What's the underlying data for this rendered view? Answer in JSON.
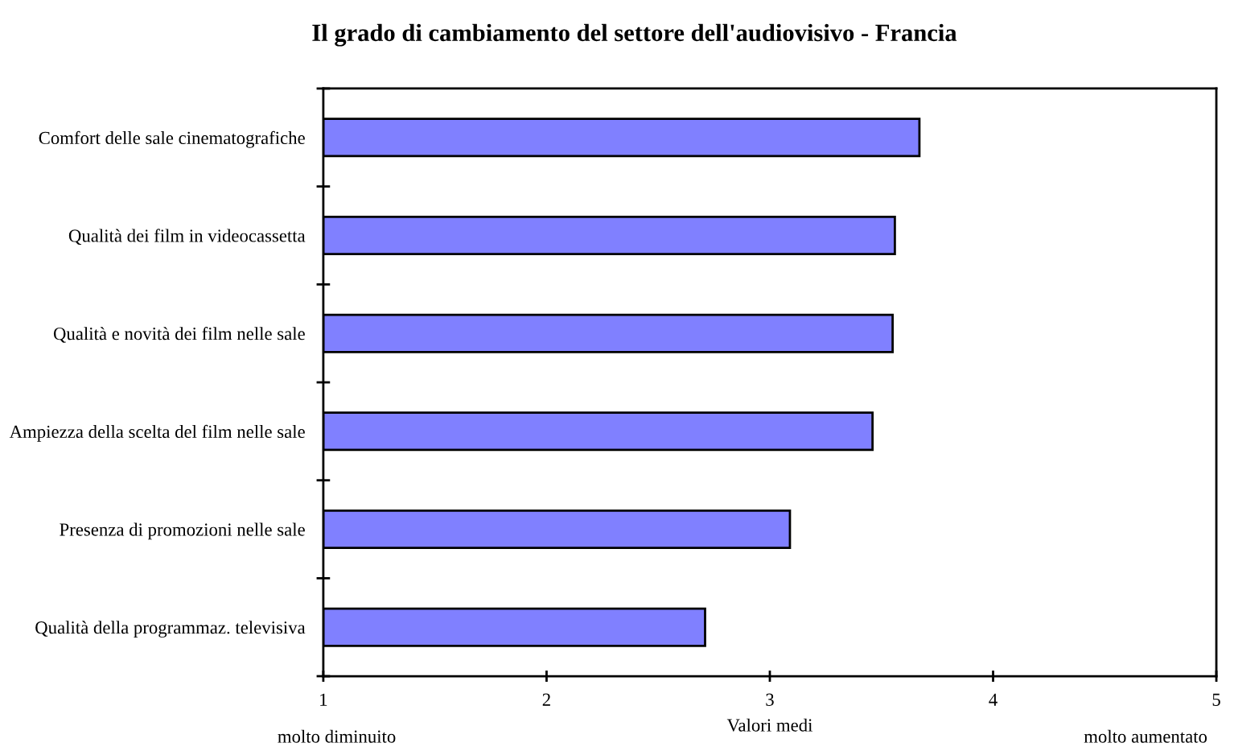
{
  "chart_data": {
    "type": "bar",
    "orientation": "horizontal",
    "title": "Il grado di cambiamento del settore dell'audiovisivo - Francia",
    "xlabel": "Valori medi",
    "categories": [
      "Comfort delle sale cinematografiche",
      "Qualità dei film in videocassetta",
      "Qualità e novità dei film nelle sale",
      "Ampiezza della scelta del film nelle sale",
      "Presenza di promozioni nelle sale",
      "Qualità della programmaz. televisiva"
    ],
    "values": [
      3.67,
      3.56,
      3.55,
      3.46,
      3.09,
      2.71
    ],
    "color": "#8080ff",
    "xlim": [
      1,
      5
    ],
    "xticks": [
      1,
      2,
      3,
      4,
      5
    ],
    "annotations": [
      "molto diminuito",
      "molto aumentato"
    ]
  }
}
